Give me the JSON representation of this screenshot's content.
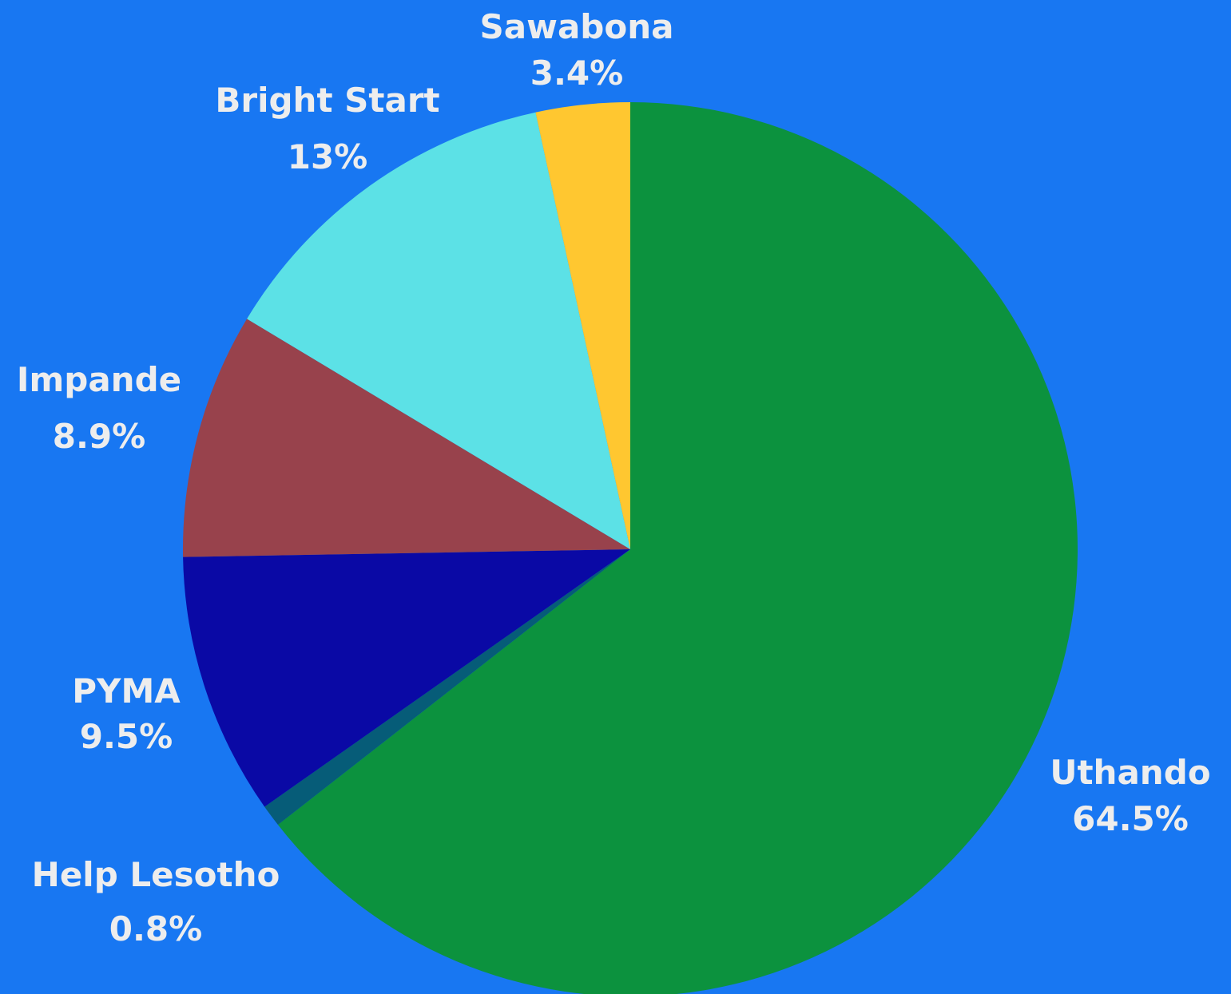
{
  "chart_data": {
    "type": "pie",
    "background": "#1877F2",
    "label_color": "#EDEDED",
    "start": "12 o'clock",
    "direction": "clockwise",
    "slices": [
      {
        "name": "Uthando",
        "value": 64.5,
        "label": "64.5%",
        "color": "#0C923E"
      },
      {
        "name": "Help Lesotho",
        "value": 0.8,
        "label": "0.8%",
        "color": "#065C78"
      },
      {
        "name": "PYMA",
        "value": 9.5,
        "label": "9.5%",
        "color": "#0A09A5"
      },
      {
        "name": "Impande",
        "value": 8.9,
        "label": "8.9%",
        "color": "#98424C"
      },
      {
        "name": "Bright Start",
        "value": 13,
        "label": "13%",
        "color": "#5CE1E6"
      },
      {
        "name": "Sawabona",
        "value": 3.4,
        "label": "3.4%",
        "color": "#FFC730"
      }
    ]
  }
}
